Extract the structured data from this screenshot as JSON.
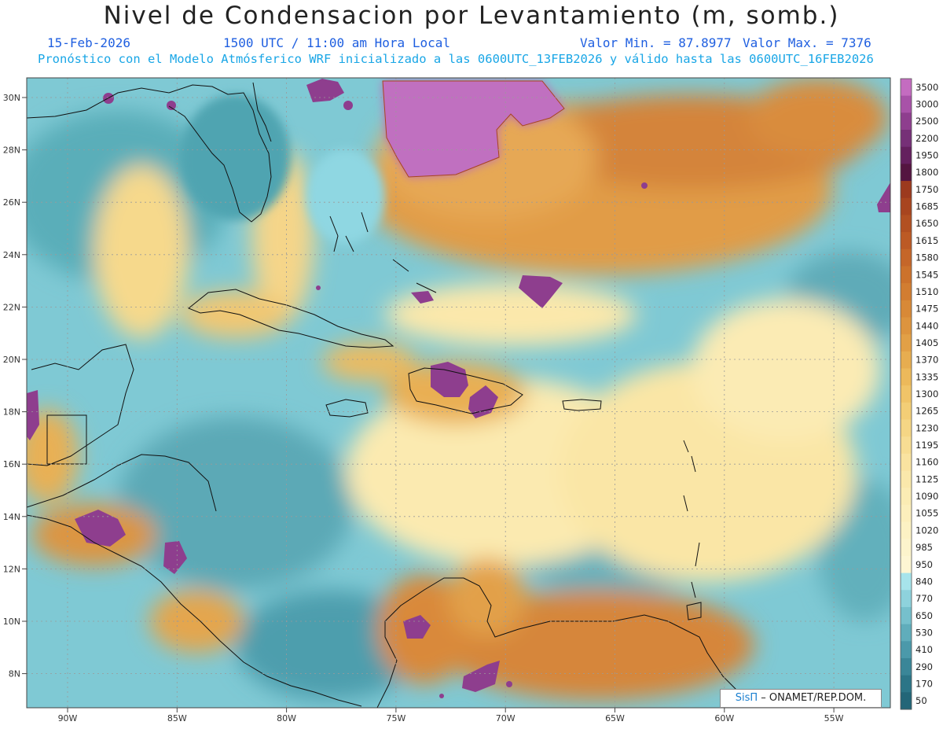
{
  "header": {
    "title": "Nivel de Condensacion por Levantamiento (m, somb.)",
    "date": "15-Feb-2026",
    "time": "1500 UTC / 11:00 am Hora Local",
    "valor_min": "Valor Min. = 87.8977",
    "valor_max": "Valor Max. = 7376",
    "forecast_line": "Pronóstico con el Modelo Atmósferico WRF inicializado a las 0600UTC_13FEB2026 y válido hasta las  0600UTC_16FEB2026"
  },
  "axes": {
    "lat_labels": [
      "30N",
      "28N",
      "26N",
      "24N",
      "22N",
      "20N",
      "18N",
      "16N",
      "14N",
      "12N",
      "10N",
      "8N"
    ],
    "lon_labels": [
      "90W",
      "85W",
      "80W",
      "75W",
      "70W",
      "65W",
      "60W",
      "55W"
    ]
  },
  "colorbar": {
    "levels": [
      "3500",
      "3000",
      "2500",
      "2200",
      "1950",
      "1800",
      "1750",
      "1685",
      "1650",
      "1615",
      "1580",
      "1545",
      "1510",
      "1475",
      "1440",
      "1405",
      "1370",
      "1335",
      "1300",
      "1265",
      "1230",
      "1195",
      "1160",
      "1125",
      "1090",
      "1055",
      "1020",
      "985",
      "950",
      "840",
      "770",
      "650",
      "530",
      "410",
      "290",
      "170",
      "50"
    ],
    "colors": [
      "#c46cc0",
      "#a852a8",
      "#8e3e8e",
      "#763077",
      "#64205e",
      "#541540",
      "#9c3a1e",
      "#a8451f",
      "#b25022",
      "#bc5a25",
      "#c56629",
      "#cc722c",
      "#d27d31",
      "#d88937",
      "#dd943e",
      "#e2a046",
      "#e7ad50",
      "#ecb95b",
      "#f0c468",
      "#f3ce76",
      "#f5d685",
      "#f7dd93",
      "#f9e3a0",
      "#fae8ab",
      "#fbecb4",
      "#fcefbc",
      "#fcf2c4",
      "#fcf4cc",
      "#fdf6d3",
      "#a7e4eb",
      "#8ed2dc",
      "#76c0cc",
      "#60adbb",
      "#4b99aa",
      "#3a8698",
      "#2c7587",
      "#236678"
    ]
  },
  "credit": {
    "brand": "SisΠ",
    "text": " – ONAMET/REP.DOM."
  }
}
